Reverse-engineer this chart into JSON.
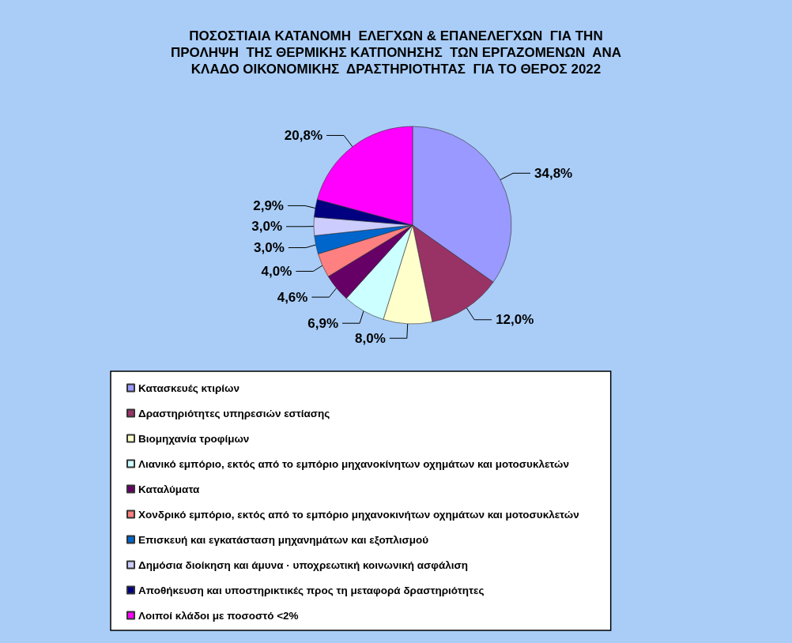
{
  "chart_data": {
    "type": "pie",
    "title": "ΠΟΣΟΣΤΙΑΙΑ ΚΑΤΑΝΟΜΗ  ΕΛΕΓΧΩΝ & ΕΠΑΝΕΛΕΓΧΩΝ  ΓΙΑ ΤΗΝ\nΠΡΟΛΗΨΗ  ΤΗΣ ΘΕΡΜΙΚΗΣ ΚΑΤΠΟΝΗΣΗΣ  ΤΩΝ ΕΡΓΑΖΟΜΕΝΩΝ  ΑΝΑ\nΚΛΑΔΟ ΟΙΚΟΝΟΜΙΚΗΣ  ΔΡΑΣΤΗΡΙΟΤΗΤΑΣ  ΓΙΑ ΤΟ ΘΕΡΟΣ 2022",
    "categories": [
      "Κατασκευές κτιρίων",
      "Δραστηριότητες υπηρεσιών εστίασης",
      "Βιομηχανία τροφίμων",
      "Λιανικό εμπόριο, εκτός από το εμπόριο μηχανοκίνητων οχημάτων και μοτοσυκλετών",
      "Καταλύματα",
      "Χονδρικό εμπόριο, εκτός από το εμπόριο μηχανοκινήτων οχημάτων και μοτοσυκλετών",
      "Επισκευή και εγκατάσταση μηχανημάτων και εξοπλισμού",
      "Δημόσια διοίκηση και άμυνα · υποχρεωτική κοινωνική ασφάλιση",
      "Αποθήκευση και υποστηρικτικές προς τη μεταφορά δραστηριότητες",
      "Λοιποί κλάδοι με ποσοστό <2%"
    ],
    "values": [
      34.8,
      12.0,
      8.0,
      6.9,
      4.6,
      4.0,
      3.0,
      3.0,
      2.9,
      20.8
    ],
    "colors": [
      "#9999ff",
      "#993366",
      "#ffffcc",
      "#ccffff",
      "#660066",
      "#ff8080",
      "#0066cc",
      "#ccccff",
      "#000080",
      "#ff00ff"
    ],
    "value_labels": [
      "34,8%",
      "12,0%",
      "8,0%",
      "6,9%",
      "4,6%",
      "4,0%",
      "3,0%",
      "3,0%",
      "2,9%",
      "20,8%"
    ],
    "legend": "bottom"
  }
}
